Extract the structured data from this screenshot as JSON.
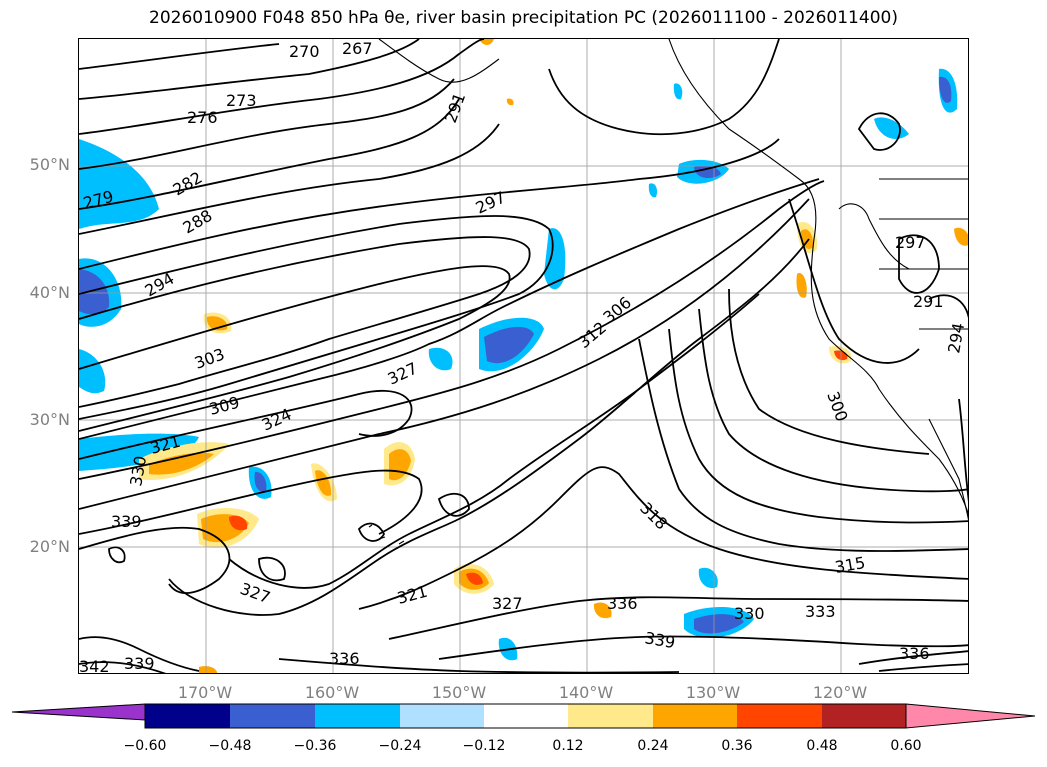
{
  "title": "2026010900 F048 850 hPa θe, river basin precipitation PC (2026011100 - 2026011400)",
  "lat_labels": [
    "50°N",
    "40°N",
    "30°N",
    "20°N"
  ],
  "lon_labels": [
    "170°W",
    "160°W",
    "150°W",
    "140°W",
    "130°W",
    "120°W"
  ],
  "contour_labels": [
    "270",
    "267",
    "273",
    "276",
    "291",
    "279",
    "282",
    "288",
    "297",
    "294",
    "303",
    "309",
    "324",
    "327",
    "321",
    "312",
    "306",
    "300",
    "297",
    "291",
    "294",
    "339",
    "330",
    "327",
    "321",
    "327",
    "336",
    "330",
    "333",
    "315",
    "318",
    "339",
    "342",
    "339",
    "336",
    "336"
  ],
  "colorbar": {
    "ticks": [
      "−0.60",
      "−0.48",
      "−0.36",
      "−0.24",
      "−0.12",
      "0.12",
      "0.24",
      "0.36",
      "0.48",
      "0.60"
    ],
    "colors": [
      "#9933cc",
      "#00008b",
      "#3a5fd1",
      "#00bfff",
      "#b0e0ff",
      "#ffffff",
      "#ffe98a",
      "#ffa500",
      "#ff4500",
      "#b22222",
      "#ff88aa"
    ]
  }
}
